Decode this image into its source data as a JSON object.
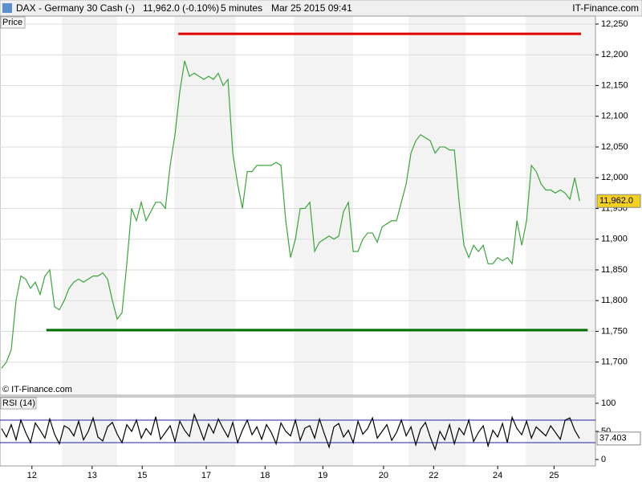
{
  "header": {
    "symbol": "DAX - Germany 30 Cash (-)",
    "quote": "11,962.0 (-0.10%)",
    "interval": "5 minutes",
    "datetime": "Mar 25 2015 09:41",
    "brand": "IT-Finance.com"
  },
  "chart_data": [
    {
      "type": "line",
      "title": "Price",
      "watermark": "© IT-Finance.com",
      "color": "#3aa63a",
      "x": [
        0,
        1,
        2,
        3,
        4,
        5,
        6,
        7,
        8,
        9,
        10,
        11,
        12,
        13,
        14,
        15,
        16,
        17,
        18,
        19,
        20,
        21,
        22,
        23,
        24,
        25,
        26,
        27,
        28,
        29,
        30,
        31,
        32,
        33,
        34,
        35,
        36,
        37,
        38,
        39,
        40,
        41,
        42,
        43,
        44,
        45,
        46,
        47,
        48,
        49,
        50,
        51,
        52,
        53,
        54,
        55,
        56,
        57,
        58,
        59,
        60,
        61,
        62,
        63,
        64,
        65,
        66,
        67,
        68,
        69,
        70,
        71,
        72,
        73,
        74,
        75,
        76,
        77,
        78,
        79,
        80,
        81,
        82,
        83,
        84,
        85,
        86,
        87,
        88,
        89,
        90,
        91,
        92,
        93,
        94,
        95,
        96,
        97,
        98,
        99,
        100,
        101,
        102,
        103,
        104,
        105,
        106,
        107,
        108,
        109,
        110,
        111,
        112,
        113,
        114,
        115,
        116,
        117,
        118,
        119,
        120
      ],
      "values": [
        11690,
        11700,
        11720,
        11800,
        11840,
        11835,
        11820,
        11830,
        11810,
        11840,
        11850,
        11790,
        11785,
        11800,
        11820,
        11830,
        11835,
        11830,
        11835,
        11840,
        11840,
        11845,
        11835,
        11800,
        11770,
        11780,
        11860,
        11950,
        11930,
        11960,
        11930,
        11945,
        11960,
        11960,
        11950,
        12020,
        12070,
        12140,
        12190,
        12165,
        12170,
        12165,
        12160,
        12165,
        12160,
        12170,
        12150,
        12160,
        12040,
        11990,
        11950,
        12010,
        12010,
        12020,
        12020,
        12020,
        12020,
        12025,
        12020,
        11930,
        11870,
        11900,
        11950,
        11950,
        11960,
        11880,
        11895,
        11900,
        11905,
        11900,
        11905,
        11945,
        11960,
        11880,
        11880,
        11900,
        11910,
        11910,
        11895,
        11920,
        11925,
        11930,
        11930,
        11960,
        11990,
        12040,
        12060,
        12070,
        12065,
        12060,
        12040,
        12050,
        12050,
        12045,
        12045,
        11960,
        11890,
        11870,
        11890,
        11880,
        11890,
        11860,
        11860,
        11870,
        11865,
        11870,
        11860,
        11930,
        11890,
        11930,
        12020,
        12010,
        11990,
        11980,
        11980,
        11975,
        11980,
        11975,
        11965,
        12000,
        11962
      ],
      "last_value_label": "11,962.0",
      "levels": [
        {
          "value": 12234,
          "color": "#e00000",
          "x": [
            36.7,
            120.3
          ]
        },
        {
          "value": 11752,
          "color": "#007000",
          "x": [
            9.3,
            121.7
          ]
        }
      ],
      "xlim": [
        -0.33,
        123.3
      ],
      "ylim": [
        11646,
        12263
      ],
      "yticks": [
        {
          "value": 11700,
          "label": "11,700"
        },
        {
          "value": 11750,
          "label": "11,750"
        },
        {
          "value": 11800,
          "label": "11,800"
        },
        {
          "value": 11850,
          "label": "11,850"
        },
        {
          "value": 11900,
          "label": "11,900"
        },
        {
          "value": 11950,
          "label": "11,950"
        },
        {
          "value": 12000,
          "label": "12,000"
        },
        {
          "value": 12050,
          "label": "12,050"
        },
        {
          "value": 12100,
          "label": "12,100"
        },
        {
          "value": 12150,
          "label": "12,150"
        },
        {
          "value": 12200,
          "label": "12,200"
        },
        {
          "value": 12250,
          "label": "12,250"
        }
      ],
      "grid": true
    },
    {
      "type": "line",
      "title": "RSI (14)",
      "color": "#000000",
      "x": [
        0,
        1,
        2,
        3,
        4,
        5,
        6,
        7,
        8,
        9,
        10,
        11,
        12,
        13,
        14,
        15,
        16,
        17,
        18,
        19,
        20,
        21,
        22,
        23,
        24,
        25,
        26,
        27,
        28,
        29,
        30,
        31,
        32,
        33,
        34,
        35,
        36,
        37,
        38,
        39,
        40,
        41,
        42,
        43,
        44,
        45,
        46,
        47,
        48,
        49,
        50,
        51,
        52,
        53,
        54,
        55,
        56,
        57,
        58,
        59,
        60,
        61,
        62,
        63,
        64,
        65,
        66,
        67,
        68,
        69,
        70,
        71,
        72,
        73,
        74,
        75,
        76,
        77,
        78,
        79,
        80,
        81,
        82,
        83,
        84,
        85,
        86,
        87,
        88,
        89,
        90,
        91,
        92,
        93,
        94,
        95,
        96,
        97,
        98,
        99,
        100,
        101,
        102,
        103,
        104,
        105,
        106,
        107,
        108,
        109,
        110,
        111,
        112,
        113,
        114,
        115,
        116,
        117,
        118,
        119,
        120
      ],
      "values": [
        55,
        40,
        62,
        35,
        70,
        48,
        30,
        65,
        52,
        38,
        72,
        45,
        28,
        60,
        55,
        42,
        68,
        35,
        50,
        74,
        40,
        33,
        58,
        66,
        45,
        30,
        62,
        50,
        70,
        38,
        55,
        44,
        76,
        36,
        48,
        60,
        32,
        68,
        52,
        41,
        80,
        58,
        35,
        63,
        47,
        72,
        55,
        40,
        66,
        30,
        52,
        70,
        44,
        58,
        36,
        62,
        48,
        28,
        65,
        50,
        42,
        70,
        34,
        56,
        60,
        38,
        72,
        46,
        22,
        58,
        64,
        40,
        52,
        30,
        68,
        45,
        55,
        74,
        38,
        50,
        62,
        34,
        48,
        70,
        42,
        58,
        26,
        54,
        66,
        40,
        18,
        50,
        35,
        62,
        28,
        56,
        44,
        70,
        32,
        48,
        60,
        24,
        52,
        40,
        64,
        30,
        75,
        55,
        44,
        68,
        38,
        58,
        50,
        42,
        60,
        48,
        36,
        70,
        74,
        52,
        37.403
      ],
      "bands": [
        30,
        70
      ],
      "band_color": "#2020a0",
      "xlim": [
        -0.33,
        123.3
      ],
      "ylim": [
        -11.4,
        111.4
      ],
      "yticks": [
        0,
        50,
        100
      ],
      "xticks": [
        {
          "value": 6.3,
          "label": "12"
        },
        {
          "value": 18.8,
          "label": "13"
        },
        {
          "value": 29.2,
          "label": "15"
        },
        {
          "value": 42.5,
          "label": "17"
        },
        {
          "value": 54.7,
          "label": "18"
        },
        {
          "value": 66.7,
          "label": "19"
        },
        {
          "value": 79.3,
          "label": "20"
        },
        {
          "value": 89.7,
          "label": "22"
        },
        {
          "value": 103,
          "label": "24"
        },
        {
          "value": 114.7,
          "label": "25"
        }
      ]
    }
  ]
}
